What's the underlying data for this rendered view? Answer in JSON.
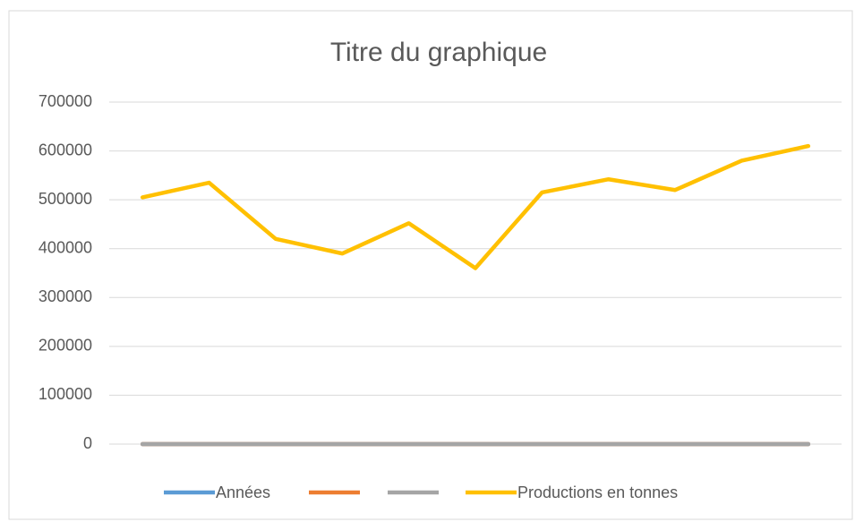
{
  "chart_data": {
    "type": "line",
    "title": "Titre du graphique",
    "categories": [
      null,
      null,
      null,
      null,
      null,
      null,
      null,
      null,
      null,
      null,
      null
    ],
    "series": [
      {
        "name": "Années",
        "color": "#5b9bd5",
        "values": [
          0,
          0,
          0,
          0,
          0,
          0,
          0,
          0,
          0,
          0,
          0
        ]
      },
      {
        "color": "#ed7d31",
        "values": [
          0,
          0,
          0,
          0,
          0,
          0,
          0,
          0,
          0,
          0,
          0
        ]
      },
      {
        "color": "#a5a5a5",
        "values": [
          0,
          0,
          0,
          0,
          0,
          0,
          0,
          0,
          0,
          0,
          0
        ]
      },
      {
        "name": "Productions en tonnes",
        "color": "#ffc000",
        "values": [
          505000,
          535000,
          420000,
          390000,
          452000,
          360000,
          515000,
          542000,
          520000,
          580000,
          610000
        ]
      }
    ],
    "ylim": [
      0,
      700000
    ],
    "yticks": [
      0,
      100000,
      200000,
      300000,
      400000,
      500000,
      600000,
      700000
    ],
    "grid": true,
    "legend": "bottom"
  }
}
